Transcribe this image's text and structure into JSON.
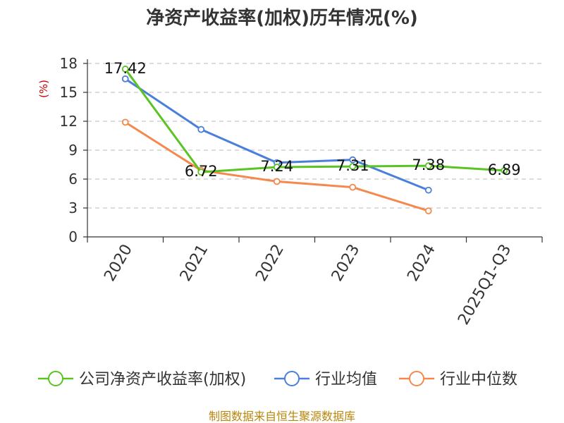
{
  "chart_data": {
    "type": "line",
    "title": "净资产收益率(加权)历年情况(%)",
    "ylabel": "(%)",
    "xlabel": "",
    "categories": [
      "2020",
      "2021",
      "2022",
      "2023",
      "2024",
      "2025Q1-Q3"
    ],
    "ylim": [
      0,
      18
    ],
    "yticks": [
      0,
      3,
      6,
      9,
      12,
      15,
      18
    ],
    "grid": "horizontal-dashed",
    "legend_position": "bottom",
    "series": [
      {
        "name": "公司净资产收益率(加权)",
        "color": "#5ac423",
        "values": [
          17.42,
          6.72,
          7.24,
          7.31,
          7.38,
          6.89
        ],
        "labels": [
          "17.42",
          "6.72",
          "7.24",
          "7.31",
          "7.38",
          "6.89"
        ]
      },
      {
        "name": "行业均值",
        "color": "#4a7fdb",
        "values": [
          16.4,
          11.15,
          7.7,
          8.0,
          4.85,
          null
        ]
      },
      {
        "name": "行业中位数",
        "color": "#f5894d",
        "values": [
          11.9,
          6.9,
          5.75,
          5.15,
          2.7,
          null
        ]
      }
    ]
  },
  "source_text": "制图数据来自恒生聚源数据库"
}
